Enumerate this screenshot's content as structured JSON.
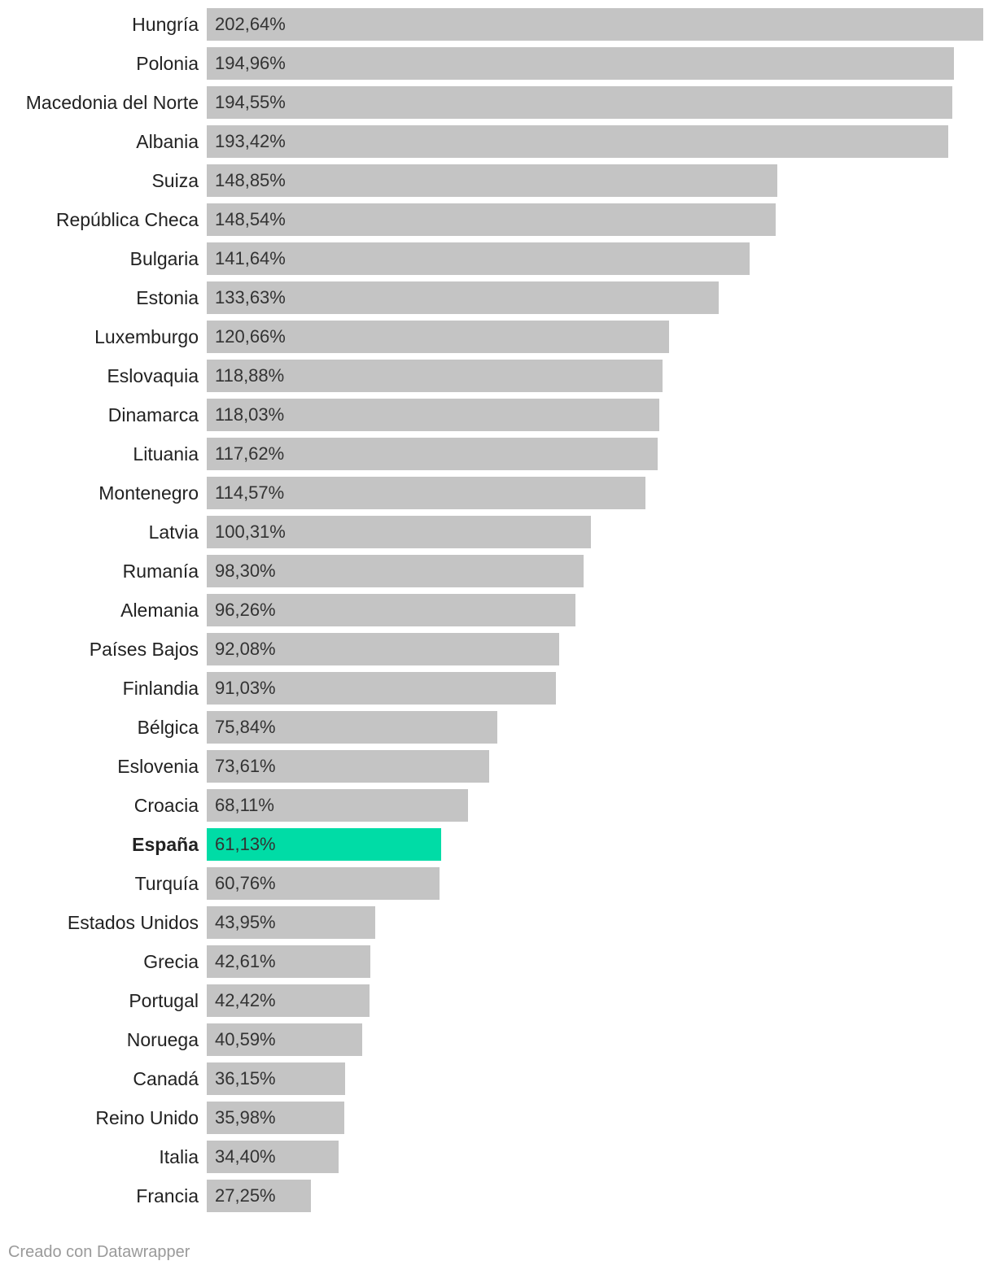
{
  "chart_data": {
    "type": "bar",
    "orientation": "horizontal",
    "highlight_color": "#00dca6",
    "bar_color": "#c4c4c4",
    "highlight_category": "España",
    "xlim": [
      0,
      202.64
    ],
    "categories": [
      "Hungría",
      "Polonia",
      "Macedonia del Norte",
      "Albania",
      "Suiza",
      "República Checa",
      "Bulgaria",
      "Estonia",
      "Luxemburgo",
      "Eslovaquia",
      "Dinamarca",
      "Lituania",
      "Montenegro",
      "Latvia",
      "Rumanía",
      "Alemania",
      "Países Bajos",
      "Finlandia",
      "Bélgica",
      "Eslovenia",
      "Croacia",
      "España",
      "Turquía",
      "Estados Unidos",
      "Grecia",
      "Portugal",
      "Noruega",
      "Canadá",
      "Reino Unido",
      "Italia",
      "Francia"
    ],
    "values": [
      202.64,
      194.96,
      194.55,
      193.42,
      148.85,
      148.54,
      141.64,
      133.63,
      120.66,
      118.88,
      118.03,
      117.62,
      114.57,
      100.31,
      98.3,
      96.26,
      92.08,
      91.03,
      75.84,
      73.61,
      68.11,
      61.13,
      60.76,
      43.95,
      42.61,
      42.42,
      40.59,
      36.15,
      35.98,
      34.4,
      27.25
    ],
    "value_labels": [
      "202,64%",
      "194,96%",
      "194,55%",
      "193,42%",
      "148,85%",
      "148,54%",
      "141,64%",
      "133,63%",
      "120,66%",
      "118,88%",
      "118,03%",
      "117,62%",
      "114,57%",
      "100,31%",
      "98,30%",
      "96,26%",
      "92,08%",
      "91,03%",
      "75,84%",
      "73,61%",
      "68,11%",
      "61,13%",
      "60,76%",
      "43,95%",
      "42,61%",
      "42,42%",
      "40,59%",
      "36,15%",
      "35,98%",
      "34,40%",
      "27,25%"
    ]
  },
  "footer": {
    "credit": "Creado con Datawrapper"
  }
}
